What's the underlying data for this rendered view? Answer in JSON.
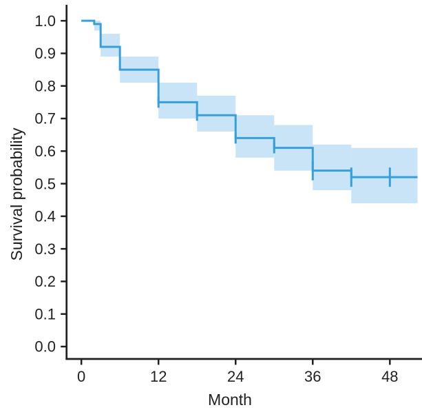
{
  "figure": {
    "background": "#ffffff"
  },
  "chart_data": {
    "type": "line",
    "subtype": "kaplan-meier-step-curve-with-confidence-band",
    "title": "",
    "xlabel": "Month",
    "ylabel": "Survival probability",
    "grid": false,
    "legend": null,
    "xlim": [
      -2.3,
      53
    ],
    "ylim": [
      -0.038,
      1.049
    ],
    "x_ticks": [
      0,
      12,
      24,
      36,
      48
    ],
    "x_tick_labels": [
      "0",
      "12",
      "24",
      "36",
      "48"
    ],
    "y_ticks": [
      0.0,
      0.1,
      0.2,
      0.3,
      0.4,
      0.5,
      0.6,
      0.7,
      0.8,
      0.9,
      1.0
    ],
    "y_tick_labels": [
      "0.0",
      "0.1",
      "0.2",
      "0.3",
      "0.4",
      "0.5",
      "0.6",
      "0.7",
      "0.8",
      "0.9",
      "1.0"
    ],
    "axis_color": "#221f20",
    "text_color": "#221f20",
    "series": [
      {
        "name": "Survival probability",
        "line_color": "#399fd8",
        "ci_color": "#c8e4f6",
        "steps": [
          {
            "t": 0,
            "s": 1.0,
            "lo": 1.0,
            "hi": 1.0
          },
          {
            "t": 2,
            "s": 0.99,
            "lo": 0.97,
            "hi": 1.0
          },
          {
            "t": 3,
            "s": 0.92,
            "lo": 0.89,
            "hi": 0.96
          },
          {
            "t": 6,
            "s": 0.85,
            "lo": 0.81,
            "hi": 0.89
          },
          {
            "t": 12,
            "s": 0.75,
            "lo": 0.7,
            "hi": 0.81
          },
          {
            "t": 18,
            "s": 0.71,
            "lo": 0.66,
            "hi": 0.77
          },
          {
            "t": 24,
            "s": 0.64,
            "lo": 0.58,
            "hi": 0.71
          },
          {
            "t": 30,
            "s": 0.61,
            "lo": 0.54,
            "hi": 0.68
          },
          {
            "t": 36,
            "s": 0.54,
            "lo": 0.48,
            "hi": 0.62
          },
          {
            "t": 42,
            "s": 0.52,
            "lo": 0.44,
            "hi": 0.61
          }
        ],
        "end_time": 52.3,
        "censor_times": [
          12,
          18,
          24,
          30,
          36,
          42,
          48
        ]
      }
    ]
  }
}
